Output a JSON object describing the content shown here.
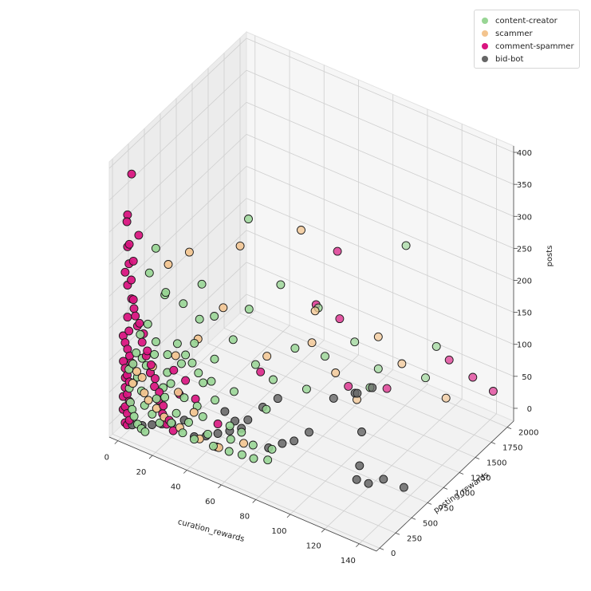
{
  "chart_data": {
    "type": "scatter",
    "xlabel": "curation_rewards",
    "ylabel": "posting_rewards",
    "zlabel": "posts",
    "xlim": [
      -5,
      150
    ],
    "ylim": [
      -50,
      2100
    ],
    "zlim": [
      -20,
      410
    ],
    "x_ticks": [
      "0",
      "20",
      "40",
      "60",
      "80",
      "100",
      "120",
      "140"
    ],
    "y_ticks": [
      "0",
      "250",
      "500",
      "750",
      "1000",
      "1250",
      "1500",
      "1750",
      "2000"
    ],
    "z_ticks": [
      "0",
      "50",
      "100",
      "150",
      "200",
      "250",
      "300",
      "350",
      "400"
    ],
    "grid": true,
    "legend_position": "top-right",
    "series": [
      {
        "name": "content-creator",
        "color": "#98d594",
        "points": [
          [
            45,
            780,
            300
          ],
          [
            95,
            1900,
            210
          ],
          [
            35,
            320,
            230
          ],
          [
            60,
            880,
            205
          ],
          [
            40,
            380,
            180
          ],
          [
            15,
            140,
            280
          ],
          [
            12,
            120,
            240
          ],
          [
            20,
            160,
            215
          ],
          [
            25,
            300,
            190
          ],
          [
            55,
            520,
            195
          ],
          [
            18,
            200,
            205
          ],
          [
            30,
            420,
            160
          ],
          [
            70,
            1200,
            150
          ],
          [
            80,
            1500,
            80
          ],
          [
            90,
            1600,
            40
          ],
          [
            110,
            1800,
            30
          ],
          [
            65,
            520,
            50
          ],
          [
            50,
            420,
            70
          ],
          [
            28,
            190,
            110
          ],
          [
            22,
            130,
            95
          ],
          [
            38,
            260,
            85
          ],
          [
            32,
            250,
            110
          ],
          [
            42,
            330,
            120
          ],
          [
            26,
            180,
            140
          ],
          [
            16,
            90,
            120
          ],
          [
            12,
            70,
            100
          ],
          [
            10,
            60,
            110
          ],
          [
            14,
            80,
            90
          ],
          [
            20,
            120,
            70
          ],
          [
            24,
            130,
            80
          ],
          [
            30,
            180,
            60
          ],
          [
            36,
            220,
            50
          ],
          [
            40,
            200,
            40
          ],
          [
            46,
            230,
            70
          ],
          [
            52,
            300,
            30
          ],
          [
            58,
            320,
            25
          ],
          [
            64,
            340,
            10
          ],
          [
            72,
            420,
            5
          ],
          [
            34,
            140,
            30
          ],
          [
            44,
            170,
            20
          ],
          [
            54,
            260,
            15
          ],
          [
            28,
            110,
            40
          ],
          [
            18,
            70,
            55
          ],
          [
            22,
            90,
            60
          ],
          [
            8,
            40,
            80
          ],
          [
            6,
            30,
            70
          ],
          [
            10,
            50,
            60
          ],
          [
            12,
            45,
            40
          ],
          [
            16,
            55,
            30
          ],
          [
            20,
            65,
            20
          ],
          [
            26,
            85,
            25
          ],
          [
            32,
            100,
            15
          ],
          [
            38,
            120,
            10
          ],
          [
            48,
            150,
            8
          ],
          [
            56,
            180,
            6
          ],
          [
            62,
            220,
            4
          ],
          [
            68,
            240,
            3
          ],
          [
            74,
            300,
            2
          ],
          [
            10,
            30,
            150
          ],
          [
            14,
            40,
            170
          ],
          [
            18,
            60,
            145
          ],
          [
            24,
            80,
            130
          ],
          [
            8,
            20,
            120
          ],
          [
            6,
            25,
            100
          ],
          [
            4,
            15,
            90
          ],
          [
            4,
            20,
            60
          ],
          [
            5,
            10,
            40
          ],
          [
            6,
            12,
            30
          ],
          [
            7,
            14,
            20
          ],
          [
            9,
            16,
            10
          ],
          [
            11,
            20,
            5
          ],
          [
            13,
            25,
            2
          ],
          [
            100,
            1200,
            60
          ],
          [
            120,
            1700,
            100
          ],
          [
            85,
            900,
            120
          ],
          [
            75,
            700,
            140
          ],
          [
            48,
            460,
            145
          ],
          [
            58,
            540,
            110
          ],
          [
            66,
            600,
            90
          ],
          [
            78,
            800,
            70
          ],
          [
            42,
            280,
            90
          ],
          [
            36,
            240,
            100
          ],
          [
            30,
            200,
            125
          ],
          [
            34,
            230,
            145
          ]
        ]
      },
      {
        "name": "scammer",
        "color": "#f3c48e",
        "points": [
          [
            60,
            1200,
            260
          ],
          [
            45,
            650,
            270
          ],
          [
            30,
            260,
            280
          ],
          [
            20,
            200,
            255
          ],
          [
            70,
            1150,
            150
          ],
          [
            40,
            520,
            180
          ],
          [
            90,
            1600,
            90
          ],
          [
            80,
            1200,
            60
          ],
          [
            100,
            1700,
            50
          ],
          [
            120,
            1850,
            5
          ],
          [
            35,
            260,
            150
          ],
          [
            25,
            180,
            120
          ],
          [
            15,
            90,
            100
          ],
          [
            10,
            60,
            80
          ],
          [
            12,
            40,
            60
          ],
          [
            18,
            70,
            40
          ],
          [
            22,
            80,
            30
          ],
          [
            30,
            110,
            20
          ],
          [
            40,
            150,
            10
          ],
          [
            50,
            180,
            5
          ],
          [
            85,
            1400,
            5
          ],
          [
            60,
            300,
            12
          ],
          [
            48,
            200,
            2
          ],
          [
            70,
            1100,
            105
          ],
          [
            55,
            800,
            95
          ],
          [
            8,
            30,
            90
          ],
          [
            6,
            20,
            70
          ],
          [
            14,
            50,
            50
          ],
          [
            28,
            140,
            70
          ],
          [
            36,
            170,
            45
          ]
        ]
      },
      {
        "name": "comment-spammer",
        "color": "#d9147f",
        "points": [
          [
            5,
            30,
            395
          ],
          [
            3,
            20,
            330
          ],
          [
            3,
            10,
            320
          ],
          [
            8,
            60,
            300
          ],
          [
            3,
            20,
            280
          ],
          [
            4,
            15,
            255
          ],
          [
            2,
            10,
            240
          ],
          [
            3,
            20,
            220
          ],
          [
            5,
            30,
            200
          ],
          [
            6,
            40,
            185
          ],
          [
            3,
            20,
            170
          ],
          [
            4,
            15,
            150
          ],
          [
            2,
            10,
            130
          ],
          [
            3,
            20,
            120
          ],
          [
            4,
            25,
            110
          ],
          [
            5,
            30,
            100
          ],
          [
            2,
            10,
            90
          ],
          [
            3,
            15,
            80
          ],
          [
            4,
            20,
            70
          ],
          [
            2,
            10,
            60
          ],
          [
            3,
            15,
            50
          ],
          [
            4,
            20,
            40
          ],
          [
            2,
            10,
            30
          ],
          [
            3,
            15,
            20
          ],
          [
            4,
            20,
            10
          ],
          [
            2,
            10,
            5
          ],
          [
            3,
            15,
            2
          ],
          [
            1,
            5,
            140
          ],
          [
            1,
            8,
            100
          ],
          [
            2,
            12,
            75
          ],
          [
            1,
            6,
            45
          ],
          [
            1,
            4,
            25
          ],
          [
            10,
            60,
            135
          ],
          [
            12,
            70,
            115
          ],
          [
            14,
            80,
            90
          ],
          [
            16,
            90,
            70
          ],
          [
            18,
            100,
            50
          ],
          [
            20,
            110,
            30
          ],
          [
            22,
            120,
            15
          ],
          [
            8,
            40,
            160
          ],
          [
            70,
            1500,
            210
          ],
          [
            65,
            1300,
            140
          ],
          [
            75,
            1400,
            120
          ],
          [
            55,
            700,
            80
          ],
          [
            80,
            1400,
            20
          ],
          [
            120,
            1900,
            60
          ],
          [
            130,
            2000,
            35
          ],
          [
            140,
            2050,
            20
          ],
          [
            95,
            1600,
            15
          ],
          [
            45,
            300,
            25
          ],
          [
            35,
            220,
            60
          ],
          [
            30,
            200,
            85
          ],
          [
            25,
            150,
            100
          ],
          [
            28,
            160,
            65
          ],
          [
            6,
            30,
            200
          ],
          [
            7,
            35,
            175
          ],
          [
            9,
            45,
            165
          ],
          [
            11,
            55,
            150
          ],
          [
            13,
            60,
            125
          ],
          [
            15,
            65,
            105
          ],
          [
            17,
            75,
            85
          ],
          [
            19,
            85,
            65
          ],
          [
            21,
            95,
            45
          ],
          [
            24,
            105,
            25
          ],
          [
            26,
            115,
            10
          ],
          [
            5,
            25,
            230
          ],
          [
            6,
            30,
            260
          ],
          [
            4,
            20,
            285
          ]
        ]
      },
      {
        "name": "bid-bot",
        "color": "#666666",
        "points": [
          [
            140,
            650,
            2
          ],
          [
            130,
            600,
            8
          ],
          [
            125,
            500,
            5
          ],
          [
            120,
            450,
            10
          ],
          [
            118,
            550,
            20
          ],
          [
            110,
            800,
            40
          ],
          [
            95,
            1100,
            55
          ],
          [
            85,
            650,
            25
          ],
          [
            80,
            550,
            15
          ],
          [
            75,
            500,
            10
          ],
          [
            70,
            420,
            5
          ],
          [
            65,
            700,
            50
          ],
          [
            60,
            600,
            40
          ],
          [
            55,
            400,
            20
          ],
          [
            50,
            350,
            15
          ],
          [
            45,
            300,
            10
          ],
          [
            40,
            250,
            5
          ],
          [
            35,
            200,
            3
          ],
          [
            30,
            180,
            25
          ],
          [
            25,
            120,
            20
          ],
          [
            20,
            100,
            15
          ],
          [
            15,
            80,
            10
          ],
          [
            10,
            60,
            5
          ],
          [
            5,
            40,
            2
          ],
          [
            90,
            900,
            60
          ],
          [
            100,
            1000,
            70
          ],
          [
            105,
            1100,
            75
          ],
          [
            48,
            330,
            45
          ],
          [
            52,
            380,
            30
          ],
          [
            58,
            420,
            35
          ]
        ]
      }
    ]
  }
}
